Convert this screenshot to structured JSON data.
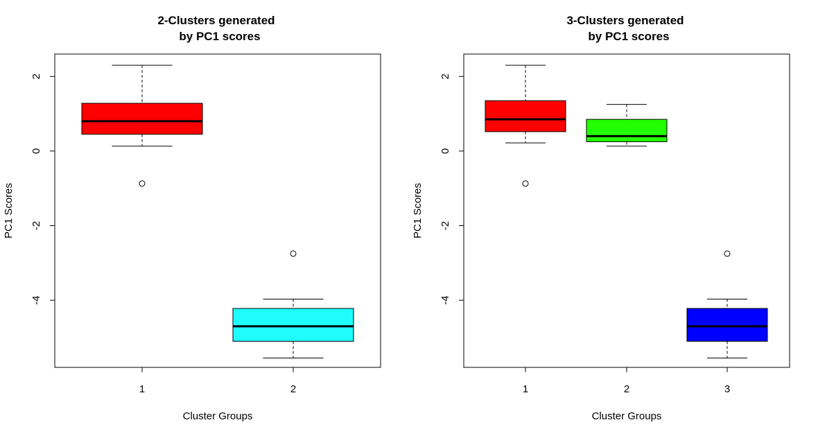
{
  "chart_data": [
    {
      "type": "box",
      "title_lines": [
        "2-Clusters generated",
        "by PC1 scores"
      ],
      "xlabel": "Cluster Groups",
      "ylabel": "PC1 Scores",
      "ylim": [
        -5.8,
        2.6
      ],
      "yticks": [
        2,
        0,
        -2,
        -4
      ],
      "ytick_labels": [
        "2",
        "0",
        "-2",
        "-4"
      ],
      "categories": [
        "1",
        "2"
      ],
      "boxes": [
        {
          "category": "1",
          "color": "#ff0000",
          "whisker_low": 0.13,
          "q1": 0.45,
          "median": 0.8,
          "q3": 1.28,
          "whisker_high": 2.3,
          "outliers": [
            -0.87
          ]
        },
        {
          "category": "2",
          "color": "#1ffcfc",
          "whisker_low": -5.55,
          "q1": -5.1,
          "median": -4.7,
          "q3": -4.22,
          "whisker_high": -3.97,
          "outliers": [
            -2.75
          ]
        }
      ],
      "grid": false
    },
    {
      "type": "box",
      "title_lines": [
        "3-Clusters generated",
        "by PC1 scores"
      ],
      "xlabel": "Cluster Groups",
      "ylabel": "PC1 Scores",
      "ylim": [
        -5.8,
        2.6
      ],
      "yticks": [
        2,
        0,
        -2,
        -4
      ],
      "ytick_labels": [
        "2",
        "0",
        "-2",
        "-4"
      ],
      "categories": [
        "1",
        "2",
        "3"
      ],
      "boxes": [
        {
          "category": "1",
          "color": "#ff0000",
          "whisker_low": 0.22,
          "q1": 0.52,
          "median": 0.85,
          "q3": 1.35,
          "whisker_high": 2.3,
          "outliers": [
            -0.87
          ]
        },
        {
          "category": "2",
          "color": "#21ff00",
          "whisker_low": 0.13,
          "q1": 0.25,
          "median": 0.4,
          "q3": 0.85,
          "whisker_high": 1.25,
          "outliers": []
        },
        {
          "category": "3",
          "color": "#0000ff",
          "whisker_low": -5.55,
          "q1": -5.1,
          "median": -4.7,
          "q3": -4.22,
          "whisker_high": -3.97,
          "outliers": [
            -2.75
          ]
        }
      ],
      "grid": false
    }
  ]
}
